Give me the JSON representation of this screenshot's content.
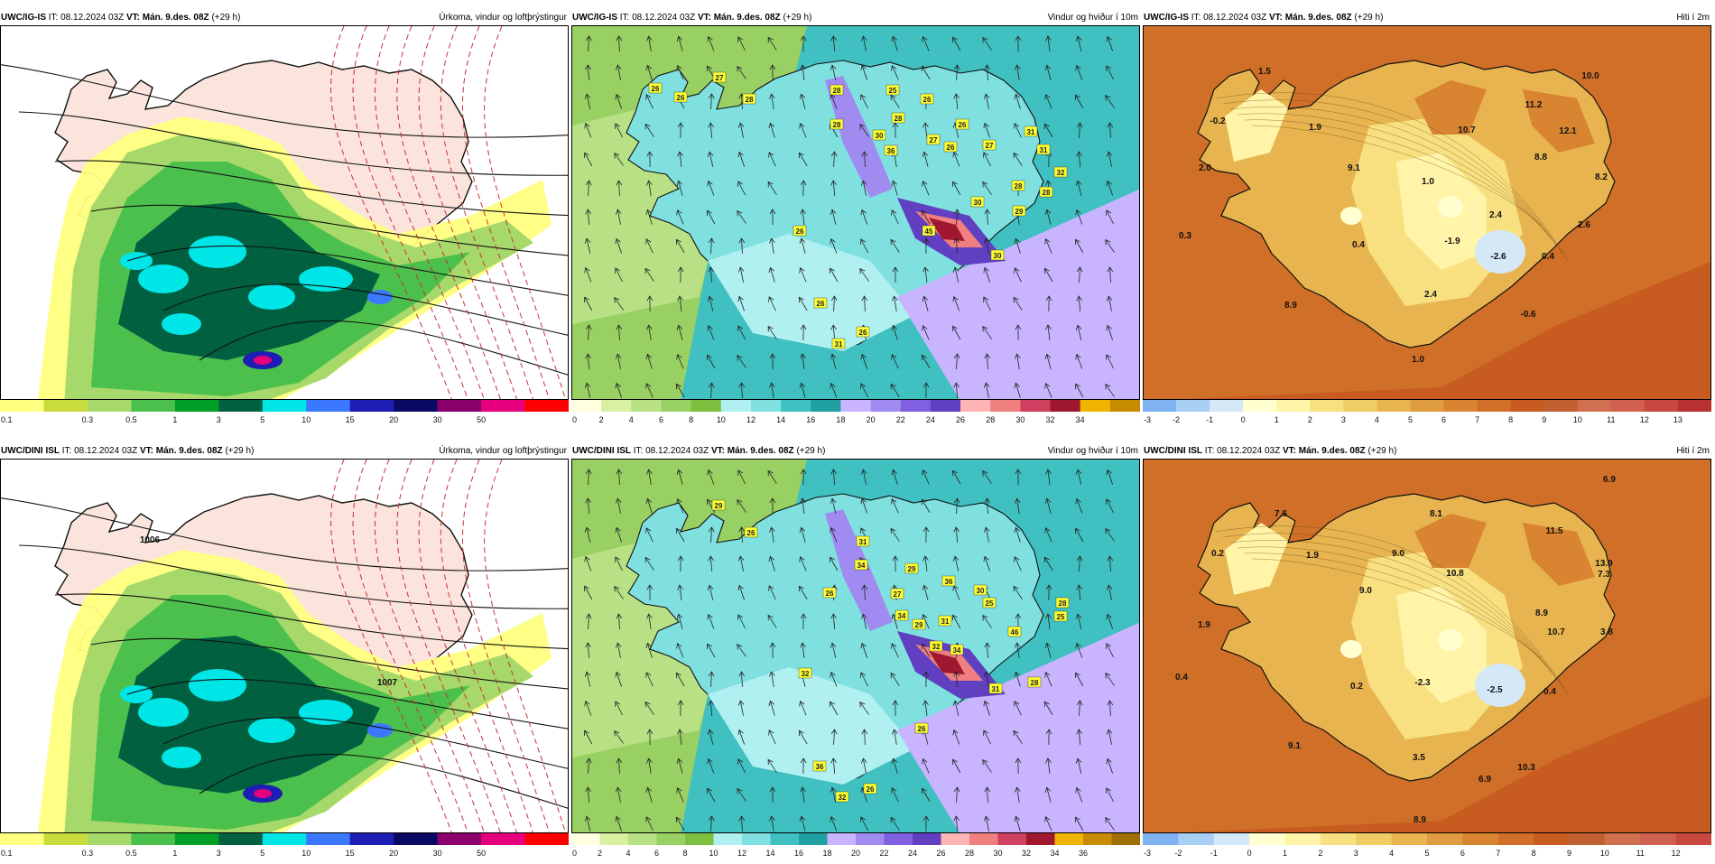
{
  "panels": [
    {
      "model": "UWC/IG-IS",
      "it_label": "IT:",
      "it_value": "08.12.2024 03Z",
      "vt_label": "VT:",
      "vt_value": "Mán. 9.des. 08Z",
      "lead": "(+29 h)",
      "field": "Úrkoma, vindur og loftþrýstingur",
      "legend": [
        "0.1",
        "0.3",
        "0.5",
        "1",
        "3",
        "5",
        "10",
        "15",
        "20",
        "30",
        "50"
      ],
      "colors": [
        "#ffff80",
        "#c8dc3c",
        "#a6d96a",
        "#4cc04c",
        "#00a028",
        "#006040",
        "#00e6e6",
        "#3c78ff",
        "#1e1eb4",
        "#0a0a64",
        "#8c006e",
        "#e6007e",
        "#ff0000"
      ],
      "labels": []
    },
    {
      "model": "UWC/IG-IS",
      "it_label": "IT:",
      "it_value": "08.12.2024 03Z",
      "vt_label": "VT:",
      "vt_value": "Mán. 9.des. 08Z",
      "lead": "(+29 h)",
      "field": "Vindur og hviður í 10m",
      "legend": [
        "0",
        "2",
        "4",
        "6",
        "8",
        "10",
        "12",
        "14",
        "16",
        "18",
        "20",
        "22",
        "24",
        "26",
        "28",
        "30",
        "32",
        "34"
      ],
      "colors": [
        "#ffffe0",
        "#d9f0a3",
        "#b8e186",
        "#98d063",
        "#7fbf3f",
        "#b0f0f0",
        "#80e0e0",
        "#40c0c0",
        "#20a0a0",
        "#c8b4ff",
        "#a08cf0",
        "#8060e0",
        "#6040c0",
        "#ffb4b4",
        "#f08080",
        "#d04060",
        "#a01830",
        "#f0b400",
        "#c88c00"
      ],
      "labels": [
        "26",
        "26",
        "27",
        "28",
        "28",
        "28",
        "25",
        "26",
        "28",
        "30",
        "36",
        "27",
        "26",
        "26",
        "27",
        "31",
        "32",
        "28",
        "28",
        "30",
        "29",
        "26",
        "45",
        "30",
        "31",
        "26",
        "26",
        "31"
      ]
    },
    {
      "model": "UWC/IG-IS",
      "it_label": "IT:",
      "it_value": "08.12.2024 03Z",
      "vt_label": "VT:",
      "vt_value": "Mán. 9.des. 08Z",
      "lead": "(+29 h)",
      "field": "Hiti í 2m",
      "legend": [
        "-3",
        "-2",
        "-1",
        "0",
        "1",
        "2",
        "3",
        "4",
        "5",
        "6",
        "7",
        "8",
        "9",
        "10",
        "11",
        "12",
        "13"
      ],
      "colors": [
        "#7fb2f0",
        "#a8d0f5",
        "#d4e8f8",
        "#ffffd0",
        "#fff4a8",
        "#f8e080",
        "#f0cc64",
        "#e8b450",
        "#e09c40",
        "#d88430",
        "#d07028",
        "#c85c20",
        "#c06030",
        "#d07050",
        "#d06050",
        "#c84840",
        "#b83030"
      ],
      "labels": [
        "1.5",
        "10.0",
        "-0.2",
        "1.9",
        "10.7",
        "11.2",
        "12.1",
        "9.1",
        "8.8",
        "2.0",
        "1.0",
        "8.2",
        "2.4",
        "0.3",
        "0.4",
        "-1.9",
        "2.6",
        "-2.6",
        "0.4",
        "2.4",
        "8.9",
        "-0.6",
        "1.0"
      ]
    },
    {
      "model": "UWC/DINI ISL",
      "it_label": "IT:",
      "it_value": "08.12.2024 03Z",
      "vt_label": "VT:",
      "vt_value": "Mán. 9.des. 08Z",
      "lead": "(+29 h)",
      "field": "Úrkoma, vindur og loftþrýstingur",
      "legend": [
        "0.1",
        "0.3",
        "0.5",
        "1",
        "3",
        "5",
        "10",
        "15",
        "20",
        "30",
        "50"
      ],
      "colors": [
        "#ffff80",
        "#c8dc3c",
        "#a6d96a",
        "#4cc04c",
        "#00a028",
        "#006040",
        "#00e6e6",
        "#3c78ff",
        "#1e1eb4",
        "#0a0a64",
        "#8c006e",
        "#e6007e",
        "#ff0000"
      ],
      "labels": [
        "1006",
        "1007"
      ]
    },
    {
      "model": "UWC/DINI ISL",
      "it_label": "IT:",
      "it_value": "08.12.2024 03Z",
      "vt_label": "VT:",
      "vt_value": "Mán. 9.des. 08Z",
      "lead": "(+29 h)",
      "field": "Vindur og hviður í 10m",
      "legend": [
        "0",
        "2",
        "4",
        "6",
        "8",
        "10",
        "12",
        "14",
        "16",
        "18",
        "20",
        "22",
        "24",
        "26",
        "28",
        "30",
        "32",
        "34",
        "36"
      ],
      "colors": [
        "#ffffe0",
        "#d9f0a3",
        "#b8e186",
        "#98d063",
        "#7fbf3f",
        "#b0f0f0",
        "#80e0e0",
        "#40c0c0",
        "#20a0a0",
        "#c8b4ff",
        "#a08cf0",
        "#8060e0",
        "#6040c0",
        "#ffb4b4",
        "#f08080",
        "#d04060",
        "#a01830",
        "#f0b400",
        "#c88c00",
        "#a07000"
      ],
      "labels": [
        "29",
        "26",
        "31",
        "34",
        "26",
        "36",
        "29",
        "27",
        "34",
        "31",
        "30",
        "25",
        "32",
        "29",
        "32",
        "28",
        "25",
        "46",
        "34",
        "31",
        "28",
        "26",
        "36",
        "26",
        "32"
      ]
    },
    {
      "model": "UWC/DINI ISL",
      "it_label": "IT:",
      "it_value": "08.12.2024 03Z",
      "vt_label": "VT:",
      "vt_value": "Mán. 9.des. 08Z",
      "lead": "(+29 h)",
      "field": "Hiti í 2m",
      "legend": [
        "-3",
        "-2",
        "-1",
        "0",
        "1",
        "2",
        "3",
        "4",
        "5",
        "6",
        "7",
        "8",
        "9",
        "10",
        "11",
        "12"
      ],
      "colors": [
        "#7fb2f0",
        "#a8d0f5",
        "#d4e8f8",
        "#ffffd0",
        "#fff4a8",
        "#f8e080",
        "#f0cc64",
        "#e8b450",
        "#e09c40",
        "#d88430",
        "#d07028",
        "#c85c20",
        "#c06030",
        "#d07050",
        "#d06050",
        "#c84840"
      ],
      "labels": [
        "6.9",
        "7.6",
        "8.1",
        "11.5",
        "0.2",
        "1.9",
        "9.0",
        "10.8",
        "13.9",
        "7.3",
        "9.0",
        "8.9",
        "10.7",
        "3.8",
        "1.9",
        "0.4",
        "0.2",
        "-2.3",
        "-2.5",
        "0.4",
        "3.5",
        "9.1",
        "6.9",
        "10.3",
        "8.9"
      ]
    }
  ]
}
